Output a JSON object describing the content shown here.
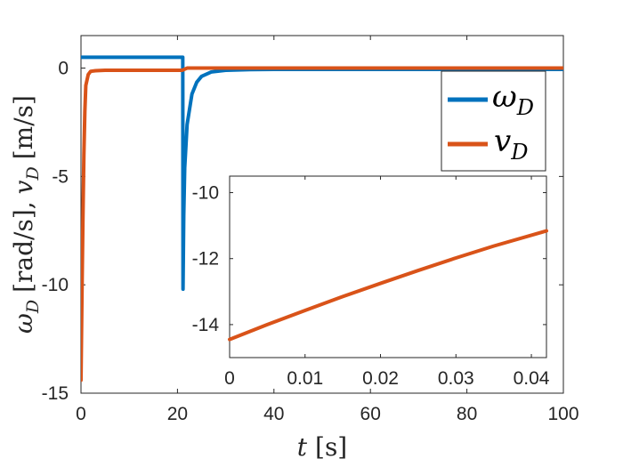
{
  "chart_data": [
    {
      "type": "line",
      "title": "",
      "xlabel": {
        "var": "t",
        "unit": "[s]"
      },
      "ylabel": {
        "var1": "ω",
        "sub1": "D",
        "unit1": "[rad/s],",
        "var2": "v",
        "sub2": "D",
        "unit2": "[m/s]"
      },
      "xlim": [
        0,
        100
      ],
      "ylim": [
        -15,
        1.5
      ],
      "xticks": [
        "0",
        "20",
        "40",
        "60",
        "80",
        "100"
      ],
      "yticks": [
        "-15",
        "-10",
        "-5",
        "0"
      ],
      "grid": false,
      "legend_position": "top-right",
      "series": [
        {
          "name": "ωD",
          "color": "#0072BD",
          "x": [
            0,
            21.1,
            21.15,
            21.3,
            21.5,
            22,
            23,
            24,
            25,
            27,
            30,
            35,
            40,
            50,
            70,
            100
          ],
          "y": [
            0.5,
            0.5,
            -10.2,
            -6.8,
            -4.6,
            -2.6,
            -1.2,
            -0.65,
            -0.38,
            -0.18,
            -0.1,
            -0.07,
            -0.06,
            -0.06,
            -0.06,
            -0.06
          ]
        },
        {
          "name": "vD",
          "color": "#D95319",
          "x": [
            0,
            0.2,
            0.4,
            0.6,
            0.8,
            1.0,
            1.5,
            2,
            3,
            5,
            10,
            21,
            22,
            30,
            60,
            100
          ],
          "y": [
            -14.4,
            -10.5,
            -7,
            -4,
            -2,
            -0.8,
            -0.3,
            -0.15,
            -0.12,
            -0.1,
            -0.1,
            -0.1,
            0,
            0,
            0,
            0
          ]
        }
      ]
    },
    {
      "type": "line",
      "title": "",
      "xlabel": "",
      "ylabel": "",
      "xlim": [
        0,
        0.042
      ],
      "ylim": [
        -15,
        -9.5
      ],
      "xticks": [
        "0",
        "0.01",
        "0.02",
        "0.03",
        "0.04"
      ],
      "yticks": [
        "-14",
        "-12",
        "-10"
      ],
      "grid": false,
      "series": [
        {
          "color": "#D95319",
          "x": [
            0,
            0.005,
            0.01,
            0.015,
            0.02,
            0.025,
            0.03,
            0.035,
            0.042
          ],
          "y": [
            -14.45,
            -14.0,
            -13.57,
            -13.15,
            -12.75,
            -12.36,
            -11.98,
            -11.62,
            -11.16
          ]
        }
      ]
    }
  ]
}
